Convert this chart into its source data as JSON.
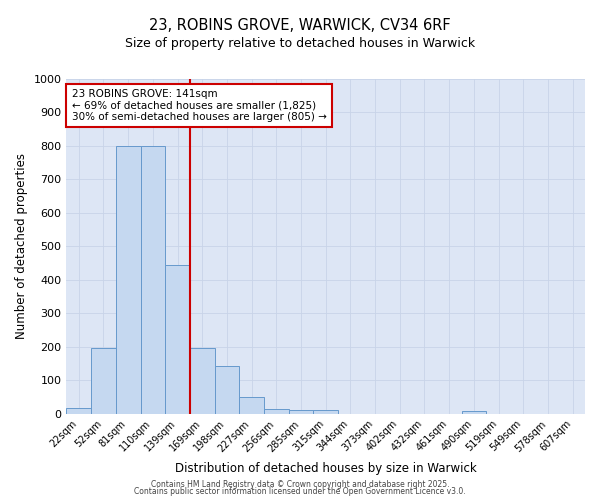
{
  "title_line1": "23, ROBINS GROVE, WARWICK, CV34 6RF",
  "title_line2": "Size of property relative to detached houses in Warwick",
  "xlabel": "Distribution of detached houses by size in Warwick",
  "ylabel": "Number of detached properties",
  "bar_labels": [
    "22sqm",
    "52sqm",
    "81sqm",
    "110sqm",
    "139sqm",
    "169sqm",
    "198sqm",
    "227sqm",
    "256sqm",
    "285sqm",
    "315sqm",
    "344sqm",
    "373sqm",
    "402sqm",
    "432sqm",
    "461sqm",
    "490sqm",
    "519sqm",
    "549sqm",
    "578sqm",
    "607sqm"
  ],
  "bar_values": [
    18,
    196,
    800,
    800,
    445,
    198,
    143,
    50,
    13,
    11,
    10,
    0,
    0,
    0,
    0,
    0,
    8,
    0,
    0,
    0,
    0
  ],
  "bar_color": "#c5d8f0",
  "bar_edge_color": "#6699cc",
  "vline_x": 4.5,
  "vline_color": "#cc0000",
  "annotation_text": "23 ROBINS GROVE: 141sqm\n← 69% of detached houses are smaller (1,825)\n30% of semi-detached houses are larger (805) →",
  "annotation_box_color": "#ffffff",
  "annotation_box_edge": "#cc0000",
  "ylim": [
    0,
    1000
  ],
  "yticks": [
    0,
    100,
    200,
    300,
    400,
    500,
    600,
    700,
    800,
    900,
    1000
  ],
  "grid_color": "#c8d4e8",
  "bg_color": "#dde6f5",
  "footer_line1": "Contains HM Land Registry data © Crown copyright and database right 2025.",
  "footer_line2": "Contains public sector information licensed under the Open Government Licence v3.0."
}
